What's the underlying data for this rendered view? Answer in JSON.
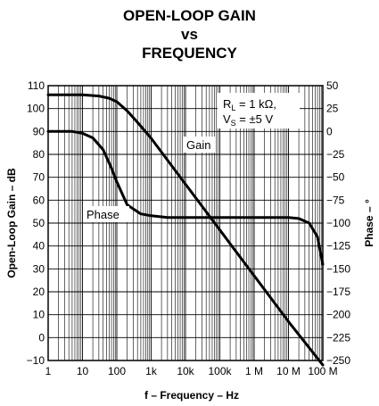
{
  "chart_data": {
    "type": "line",
    "title_lines": [
      "OPEN-LOOP GAIN",
      "vs",
      "FREQUENCY"
    ],
    "xlabel": "f – Frequency – Hz",
    "ylabel_left": "Open-Loop Gain – dB",
    "ylabel_right": "Phase – °",
    "x_scale": "log",
    "xlim": [
      1,
      100000000
    ],
    "ylim_left": [
      -10,
      110
    ],
    "ylim_right": [
      -250,
      50
    ],
    "x_ticks": [
      {
        "value": 1,
        "label": "1"
      },
      {
        "value": 10,
        "label": "10"
      },
      {
        "value": 100,
        "label": "100"
      },
      {
        "value": 1000,
        "label": "1k"
      },
      {
        "value": 10000,
        "label": "10k"
      },
      {
        "value": 100000,
        "label": "100k"
      },
      {
        "value": 1000000,
        "label": "1 M"
      },
      {
        "value": 10000000,
        "label": "10 M"
      },
      {
        "value": 100000000,
        "label": "100 M"
      }
    ],
    "y_ticks_left": [
      {
        "value": 110,
        "label": "110"
      },
      {
        "value": 100,
        "label": "100"
      },
      {
        "value": 90,
        "label": "90"
      },
      {
        "value": 80,
        "label": "80"
      },
      {
        "value": 70,
        "label": "70"
      },
      {
        "value": 60,
        "label": "60"
      },
      {
        "value": 50,
        "label": "50"
      },
      {
        "value": 40,
        "label": "40"
      },
      {
        "value": 30,
        "label": "30"
      },
      {
        "value": 20,
        "label": "20"
      },
      {
        "value": 10,
        "label": "10"
      },
      {
        "value": 0,
        "label": "0"
      },
      {
        "value": -10,
        "label": "−10"
      }
    ],
    "y_ticks_right": [
      {
        "value": 50,
        "label": "50"
      },
      {
        "value": 25,
        "label": "25"
      },
      {
        "value": 0,
        "label": "0"
      },
      {
        "value": -25,
        "label": "−25"
      },
      {
        "value": -50,
        "label": "−50"
      },
      {
        "value": -75,
        "label": "−75"
      },
      {
        "value": -100,
        "label": "−100"
      },
      {
        "value": -125,
        "label": "−125"
      },
      {
        "value": -150,
        "label": "−150"
      },
      {
        "value": -175,
        "label": "−175"
      },
      {
        "value": -200,
        "label": "−200"
      },
      {
        "value": -225,
        "label": "−225"
      },
      {
        "value": -250,
        "label": "−250"
      }
    ],
    "grid": true,
    "series": [
      {
        "name": "Gain",
        "axis": "left",
        "x": [
          1,
          3,
          10,
          30,
          60,
          100,
          200,
          400,
          1000,
          10000,
          100000,
          1000000,
          10000000,
          100000000
        ],
        "y": [
          106,
          106,
          106,
          105.5,
          104.5,
          103,
          99,
          94,
          87,
          67,
          47,
          27,
          7,
          -12
        ]
      },
      {
        "name": "Phase",
        "axis": "right",
        "x": [
          1,
          5,
          10,
          20,
          40,
          70,
          100,
          200,
          500,
          1000,
          3000,
          10000,
          100000,
          1000000,
          3000000,
          10000000,
          20000000,
          40000000,
          70000000,
          100000000
        ],
        "y": [
          0,
          0,
          -2,
          -7,
          -20,
          -40,
          -55,
          -80,
          -90,
          -92,
          -94,
          -94,
          -94,
          -94,
          -94,
          -94,
          -95,
          -100,
          -115,
          -145
        ]
      }
    ],
    "annotations": {
      "gain_label": "Gain",
      "phase_label": "Phase",
      "rl_prefix": "R",
      "rl_sub": "L",
      "rl_value": " = 1 kΩ,",
      "vs_prefix": "V",
      "vs_sub": "S",
      "vs_value": " = ±5 V"
    }
  }
}
